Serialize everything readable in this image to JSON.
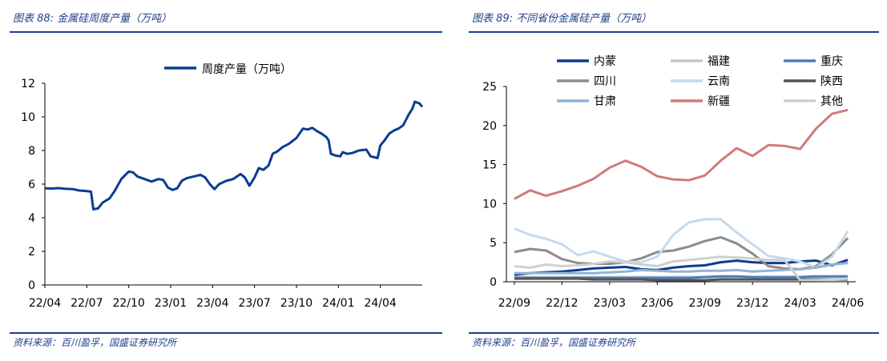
{
  "left": {
    "figure_title": "图表 88:  金属硅周度产量（万吨）",
    "source": "资料来源：百川盈孚，国盛证券研究所"
  },
  "right": {
    "figure_title": "图表 89:  不同省份金属硅产量（万吨）",
    "source": "资料来源：百川盈孚，国盛证券研究所"
  },
  "chart_data": [
    {
      "type": "line",
      "title": "",
      "legend_position": "top-center",
      "ylim": [
        0,
        12
      ],
      "yticks": [
        "0",
        "2",
        "4",
        "6",
        "8",
        "10",
        "12"
      ],
      "xticks": [
        "22/04",
        "22/07",
        "22/10",
        "23/01",
        "23/04",
        "23/07",
        "23/10",
        "24/01",
        "24/04"
      ],
      "x_range": [
        "2022-04",
        "2024-07"
      ],
      "series": [
        {
          "name": "周度产量（万吨）",
          "color": "#0a3d91",
          "points": [
            [
              "2022-04-01",
              5.75
            ],
            [
              "2022-04-15",
              5.74
            ],
            [
              "2022-05-01",
              5.76
            ],
            [
              "2022-05-15",
              5.72
            ],
            [
              "2022-06-01",
              5.7
            ],
            [
              "2022-06-15",
              5.62
            ],
            [
              "2022-07-01",
              5.58
            ],
            [
              "2022-07-10",
              5.55
            ],
            [
              "2022-07-15",
              4.5
            ],
            [
              "2022-07-25",
              4.55
            ],
            [
              "2022-08-05",
              4.9
            ],
            [
              "2022-08-20",
              5.15
            ],
            [
              "2022-09-01",
              5.6
            ],
            [
              "2022-09-15",
              6.3
            ],
            [
              "2022-10-01",
              6.75
            ],
            [
              "2022-10-10",
              6.7
            ],
            [
              "2022-10-20",
              6.45
            ],
            [
              "2022-11-05",
              6.3
            ],
            [
              "2022-11-20",
              6.15
            ],
            [
              "2022-12-05",
              6.3
            ],
            [
              "2022-12-15",
              6.25
            ],
            [
              "2022-12-25",
              5.8
            ],
            [
              "2023-01-05",
              5.65
            ],
            [
              "2023-01-15",
              5.75
            ],
            [
              "2023-01-25",
              6.2
            ],
            [
              "2023-02-05",
              6.35
            ],
            [
              "2023-02-20",
              6.45
            ],
            [
              "2023-03-05",
              6.55
            ],
            [
              "2023-03-15",
              6.4
            ],
            [
              "2023-03-25",
              6.0
            ],
            [
              "2023-04-05",
              5.7
            ],
            [
              "2023-04-15",
              6.0
            ],
            [
              "2023-05-01",
              6.2
            ],
            [
              "2023-05-15",
              6.3
            ],
            [
              "2023-06-01",
              6.6
            ],
            [
              "2023-06-10",
              6.4
            ],
            [
              "2023-06-20",
              5.9
            ],
            [
              "2023-07-01",
              6.4
            ],
            [
              "2023-07-10",
              6.95
            ],
            [
              "2023-07-20",
              6.85
            ],
            [
              "2023-08-01",
              7.1
            ],
            [
              "2023-08-10",
              7.8
            ],
            [
              "2023-08-20",
              7.95
            ],
            [
              "2023-09-01",
              8.2
            ],
            [
              "2023-09-15",
              8.4
            ],
            [
              "2023-10-01",
              8.75
            ],
            [
              "2023-10-15",
              9.3
            ],
            [
              "2023-10-25",
              9.25
            ],
            [
              "2023-11-05",
              9.35
            ],
            [
              "2023-11-15",
              9.15
            ],
            [
              "2023-11-25",
              9.0
            ],
            [
              "2023-12-05",
              8.8
            ],
            [
              "2023-12-10",
              8.6
            ],
            [
              "2023-12-15",
              7.8
            ],
            [
              "2023-12-25",
              7.7
            ],
            [
              "2024-01-05",
              7.65
            ],
            [
              "2024-01-10",
              7.9
            ],
            [
              "2024-01-20",
              7.8
            ],
            [
              "2024-02-01",
              7.85
            ],
            [
              "2024-02-15",
              8.0
            ],
            [
              "2024-03-01",
              8.05
            ],
            [
              "2024-03-10",
              7.65
            ],
            [
              "2024-03-25",
              7.55
            ],
            [
              "2024-04-01",
              8.3
            ],
            [
              "2024-04-10",
              8.6
            ],
            [
              "2024-04-20",
              9.0
            ],
            [
              "2024-05-01",
              9.2
            ],
            [
              "2024-05-10",
              9.3
            ],
            [
              "2024-05-20",
              9.5
            ],
            [
              "2024-06-01",
              10.1
            ],
            [
              "2024-06-10",
              10.5
            ],
            [
              "2024-06-15",
              10.9
            ],
            [
              "2024-06-25",
              10.8
            ],
            [
              "2024-07-01",
              10.6
            ]
          ]
        }
      ]
    },
    {
      "type": "line",
      "title": "",
      "legend_position": "top",
      "ylim": [
        0,
        25
      ],
      "yticks": [
        "0",
        "5",
        "10",
        "15",
        "20",
        "25"
      ],
      "xticks": [
        "22/09",
        "22/12",
        "23/03",
        "23/06",
        "23/09",
        "23/12",
        "24/03",
        "24/06"
      ],
      "x": [
        "2022-09",
        "2022-10",
        "2022-11",
        "2022-12",
        "2023-01",
        "2023-02",
        "2023-03",
        "2023-04",
        "2023-05",
        "2023-06",
        "2023-07",
        "2023-08",
        "2023-09",
        "2023-10",
        "2023-11",
        "2023-12",
        "2024-01",
        "2024-02",
        "2024-03",
        "2024-04",
        "2024-05",
        "2024-06"
      ],
      "series": [
        {
          "name": "内蒙",
          "color": "#0a3d91",
          "values": [
            0.9,
            1.1,
            1.2,
            1.3,
            1.5,
            1.7,
            1.8,
            1.9,
            1.6,
            1.5,
            1.8,
            2.0,
            2.1,
            2.5,
            2.7,
            2.5,
            2.4,
            2.4,
            2.6,
            2.7,
            2.1,
            2.8
          ]
        },
        {
          "name": "福建",
          "color": "#c8c8c8",
          "values": [
            0.6,
            0.6,
            0.6,
            0.6,
            0.6,
            0.6,
            0.6,
            0.6,
            0.6,
            0.6,
            0.6,
            0.6,
            0.6,
            0.6,
            0.6,
            0.6,
            0.6,
            0.6,
            0.6,
            0.6,
            0.6,
            0.6
          ]
        },
        {
          "name": "重庆",
          "color": "#4a7ec4",
          "values": [
            0.5,
            0.5,
            0.5,
            0.5,
            0.5,
            0.5,
            0.5,
            0.5,
            0.5,
            0.5,
            0.5,
            0.5,
            0.6,
            0.7,
            0.7,
            0.6,
            0.6,
            0.6,
            0.6,
            0.7,
            0.7,
            0.7
          ]
        },
        {
          "name": "四川",
          "color": "#8c8c8c",
          "values": [
            3.8,
            4.2,
            4.0,
            2.9,
            2.4,
            2.3,
            2.3,
            2.5,
            3.0,
            3.8,
            4.0,
            4.5,
            5.2,
            5.7,
            4.9,
            3.6,
            2.0,
            1.7,
            1.6,
            2.0,
            3.5,
            5.6
          ]
        },
        {
          "name": "云南",
          "color": "#c6d9ec",
          "values": [
            6.8,
            6.0,
            5.5,
            4.8,
            3.4,
            3.9,
            3.2,
            2.6,
            2.5,
            3.2,
            6.0,
            7.6,
            8.0,
            8.0,
            6.3,
            4.8,
            3.3,
            3.0,
            2.6,
            1.8,
            3.2,
            6.5
          ]
        },
        {
          "name": "陕西",
          "color": "#555555",
          "values": [
            0.4,
            0.4,
            0.4,
            0.4,
            0.4,
            0.3,
            0.3,
            0.3,
            0.3,
            0.2,
            0.2,
            0.2,
            0.2,
            0.3,
            0.3,
            0.3,
            0.3,
            0.3,
            0.3,
            0.3,
            0.3,
            0.3
          ]
        },
        {
          "name": "甘肃",
          "color": "#94b3d1",
          "values": [
            1.1,
            1.1,
            1.1,
            1.1,
            1.1,
            1.1,
            1.2,
            1.3,
            1.5,
            1.4,
            1.3,
            1.3,
            1.4,
            1.4,
            1.5,
            1.3,
            1.4,
            1.5,
            1.6,
            1.8,
            2.2,
            2.4
          ]
        },
        {
          "name": "新疆",
          "color": "#d07b7b",
          "values": [
            10.6,
            11.7,
            11.0,
            11.6,
            12.3,
            13.2,
            14.6,
            15.5,
            14.7,
            13.5,
            13.1,
            13.0,
            13.6,
            15.5,
            17.1,
            16.1,
            17.5,
            17.4,
            17.0,
            19.6,
            21.5,
            22.0
          ]
        },
        {
          "name": "其他",
          "color": "#d0d0d0",
          "values": [
            2.0,
            1.8,
            2.2,
            2.0,
            2.1,
            2.3,
            2.6,
            2.5,
            2.2,
            2.0,
            2.6,
            2.8,
            3.0,
            3.2,
            3.1,
            3.0,
            2.8,
            2.8,
            0.2,
            0.2,
            0.3,
            0.4
          ]
        }
      ]
    }
  ]
}
